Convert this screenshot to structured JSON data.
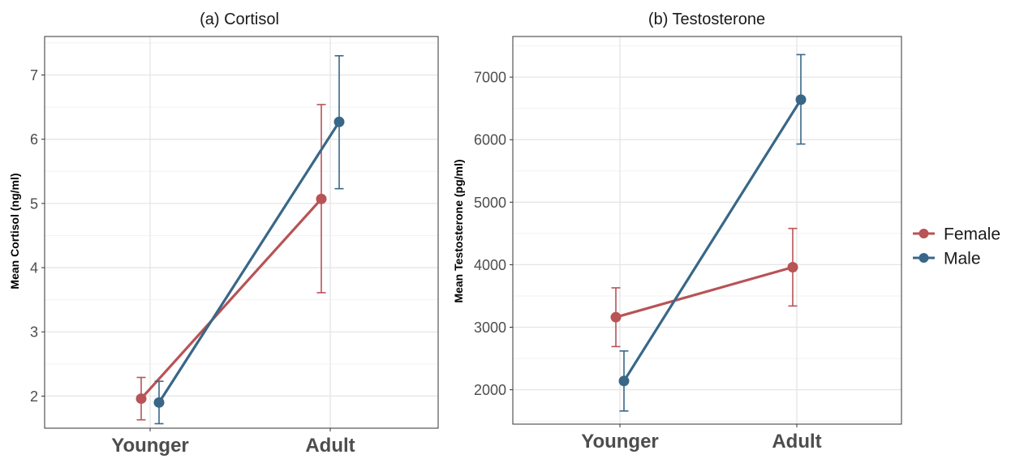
{
  "colors": {
    "female": "#b85356",
    "male": "#386788"
  },
  "legend": [
    {
      "label": "Female",
      "color": "#b85356"
    },
    {
      "label": "Male",
      "color": "#386788"
    }
  ],
  "chart_data": [
    {
      "type": "line",
      "title": "(a) Cortisol",
      "ylabel": "Mean Cortisol (ng/ml)",
      "categories": [
        "Younger",
        "Adult"
      ],
      "ylim": [
        1.5,
        7.6
      ],
      "yticks": [
        2,
        3,
        4,
        5,
        6,
        7
      ],
      "series": [
        {
          "name": "Female",
          "values": [
            1.96,
            5.07
          ],
          "lower": [
            1.63,
            3.61
          ],
          "upper": [
            2.29,
            6.54
          ]
        },
        {
          "name": "Male",
          "values": [
            1.9,
            6.27
          ],
          "lower": [
            1.57,
            5.23
          ],
          "upper": [
            2.23,
            7.3
          ]
        }
      ]
    },
    {
      "type": "line",
      "title": "(b) Testosterone",
      "ylabel": "Mean Testosterone (pg/ml)",
      "categories": [
        "Younger",
        "Adult"
      ],
      "ylim": [
        1450,
        7650
      ],
      "yticks": [
        2000,
        3000,
        4000,
        5000,
        6000,
        7000
      ],
      "series": [
        {
          "name": "Female",
          "values": [
            3160,
            3960
          ],
          "lower": [
            2690,
            3340
          ],
          "upper": [
            3630,
            4580
          ]
        },
        {
          "name": "Male",
          "values": [
            2140,
            6640
          ],
          "lower": [
            1660,
            5930
          ],
          "upper": [
            2620,
            7360
          ]
        }
      ]
    }
  ]
}
